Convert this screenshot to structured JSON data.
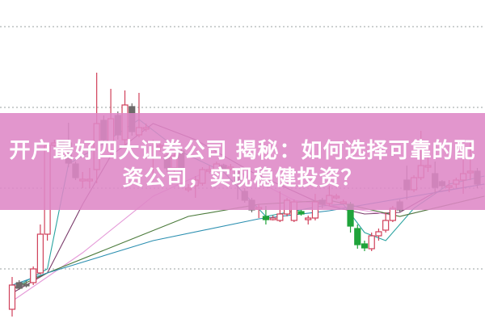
{
  "title": {
    "line1": "开户最好四大证券公司 揭秘：如何选择可靠的配",
    "line2": "资公司，实现稳健投资？"
  },
  "colors": {
    "banner": "#de87c6",
    "up": "#d0405a",
    "down": "#6e6a6a",
    "down_green": "#1fa33a",
    "grid": "#9aa0a0"
  },
  "chart_data": {
    "type": "candlestick",
    "title": "",
    "xlabel": "",
    "ylabel": "",
    "grid": "horizontal dotted",
    "gridlines": [
      1,
      2,
      3,
      4
    ],
    "candles": [
      {
        "o": 0.5,
        "h": 0.9,
        "l": 0.41,
        "c": 0.8
      },
      {
        "o": 0.83,
        "h": 0.86,
        "l": 0.74,
        "c": 0.76
      },
      {
        "o": 0.81,
        "h": 0.85,
        "l": 0.77,
        "c": 0.8
      },
      {
        "o": 0.83,
        "h": 1.03,
        "l": 0.8,
        "c": 1.0
      },
      {
        "o": 0.95,
        "h": 1.55,
        "l": 0.93,
        "c": 1.43
      },
      {
        "o": 1.43,
        "h": 2.56,
        "l": 1.35,
        "c": 2.53
      },
      {
        "o": 2.53,
        "h": 2.6,
        "l": 2.5,
        "c": 2.56
      },
      {
        "o": 2.57,
        "h": 2.6,
        "l": 2.5,
        "c": 2.53
      },
      {
        "o": 2.56,
        "h": 2.81,
        "l": 2.26,
        "c": 2.31
      },
      {
        "o": 2.3,
        "h": 2.33,
        "l": 2.1,
        "c": 2.13
      },
      {
        "o": 2.11,
        "h": 2.2,
        "l": 2.0,
        "c": 2.11
      },
      {
        "o": 2.11,
        "h": 2.25,
        "l": 2.0,
        "c": 2.11
      },
      {
        "o": 2.23,
        "h": 3.43,
        "l": 2.06,
        "c": 2.8
      },
      {
        "o": 2.84,
        "h": 2.9,
        "l": 2.55,
        "c": 2.6
      },
      {
        "o": 2.46,
        "h": 3.23,
        "l": 2.4,
        "c": 2.86
      },
      {
        "o": 2.9,
        "h": 2.95,
        "l": 2.6,
        "c": 2.66
      },
      {
        "o": 2.6,
        "h": 3.21,
        "l": 2.5,
        "c": 3.03
      },
      {
        "o": 3.01,
        "h": 3.05,
        "l": 2.65,
        "c": 2.7
      },
      {
        "o": 2.66,
        "h": 3.18,
        "l": 2.63,
        "c": 2.75
      },
      {
        "o": 2.75,
        "h": 2.8,
        "l": 2.7,
        "c": 2.75
      },
      {
        "o": 2.58,
        "h": 2.6,
        "l": 2.1,
        "c": 2.58
      },
      {
        "o": 2.53,
        "h": 2.58,
        "l": 2.45,
        "c": 2.53
      },
      {
        "o": 2.4,
        "h": 2.45,
        "l": 2.2,
        "c": 2.25
      },
      {
        "o": 2.25,
        "h": 2.45,
        "l": 2.2,
        "c": 2.4
      },
      {
        "o": 2.46,
        "h": 2.5,
        "l": 2.2,
        "c": 2.25
      },
      {
        "o": 2.0,
        "h": 2.05,
        "l": 1.95,
        "c": 2.0
      },
      {
        "o": 2.03,
        "h": 2.15,
        "l": 1.88,
        "c": 2.1
      },
      {
        "o": 2.06,
        "h": 2.26,
        "l": 2.03,
        "c": 2.23
      },
      {
        "o": 2.23,
        "h": 2.28,
        "l": 2.18,
        "c": 2.23
      },
      {
        "o": 2.23,
        "h": 2.33,
        "l": 2.2,
        "c": 2.3
      },
      {
        "o": 2.28,
        "h": 2.3,
        "l": 2.2,
        "c": 2.23
      },
      {
        "o": 2.26,
        "h": 2.3,
        "l": 2.22,
        "c": 2.26
      },
      {
        "o": 2.2,
        "h": 2.22,
        "l": 1.86,
        "c": 2.06
      },
      {
        "o": 1.96,
        "h": 2.0,
        "l": 1.82,
        "c": 1.85
      },
      {
        "o": 1.85,
        "h": 1.88,
        "l": 1.7,
        "c": 1.73
      },
      {
        "o": 1.76,
        "h": 1.8,
        "l": 1.63,
        "c": 1.76
      },
      {
        "o": 1.65,
        "h": 1.78,
        "l": 1.55,
        "c": 1.61,
        "g": true
      },
      {
        "o": 1.63,
        "h": 1.66,
        "l": 1.6,
        "c": 1.63
      },
      {
        "o": 1.6,
        "h": 1.96,
        "l": 1.58,
        "c": 1.68
      },
      {
        "o": 1.68,
        "h": 1.88,
        "l": 1.65,
        "c": 1.85
      },
      {
        "o": 1.6,
        "h": 1.86,
        "l": 1.58,
        "c": 1.83
      },
      {
        "o": 1.71,
        "h": 1.73,
        "l": 1.66,
        "c": 1.68,
        "g": true
      },
      {
        "o": 1.63,
        "h": 1.66,
        "l": 1.55,
        "c": 1.63
      },
      {
        "o": 1.63,
        "h": 1.93,
        "l": 1.6,
        "c": 1.83
      },
      {
        "o": 1.85,
        "h": 1.88,
        "l": 1.75,
        "c": 1.8
      },
      {
        "o": 1.81,
        "h": 2.03,
        "l": 1.78,
        "c": 1.91
      },
      {
        "o": 1.9,
        "h": 1.93,
        "l": 1.86,
        "c": 1.9
      },
      {
        "o": 1.83,
        "h": 1.86,
        "l": 1.8,
        "c": 1.83
      },
      {
        "o": 1.8,
        "h": 1.83,
        "l": 1.45,
        "c": 1.53,
        "g": true
      },
      {
        "o": 1.5,
        "h": 1.55,
        "l": 1.25,
        "c": 1.3,
        "g": true
      },
      {
        "o": 1.31,
        "h": 1.35,
        "l": 1.22,
        "c": 1.26,
        "g": true
      },
      {
        "o": 1.25,
        "h": 1.45,
        "l": 1.22,
        "c": 1.41
      },
      {
        "o": 1.41,
        "h": 1.5,
        "l": 1.35,
        "c": 1.46
      },
      {
        "o": 1.48,
        "h": 1.7,
        "l": 1.45,
        "c": 1.6
      },
      {
        "o": 1.6,
        "h": 1.78,
        "l": 1.58,
        "c": 1.75
      },
      {
        "o": 1.83,
        "h": 1.86,
        "l": 1.7,
        "c": 1.73
      },
      {
        "o": 2.1,
        "h": 2.28,
        "l": 1.86,
        "c": 1.98
      },
      {
        "o": 1.98,
        "h": 2.16,
        "l": 1.95,
        "c": 2.13
      },
      {
        "o": 2.13,
        "h": 2.71,
        "l": 2.1,
        "c": 2.28
      },
      {
        "o": 2.28,
        "h": 2.4,
        "l": 2.2,
        "c": 2.28
      },
      {
        "o": 2.18,
        "h": 2.33,
        "l": 1.93,
        "c": 2.01
      },
      {
        "o": 2.08,
        "h": 2.1,
        "l": 2.0,
        "c": 2.03
      },
      {
        "o": 2.03,
        "h": 2.1,
        "l": 1.95,
        "c": 2.03
      },
      {
        "o": 2.05,
        "h": 2.13,
        "l": 2.0,
        "c": 2.1
      },
      {
        "o": 2.1,
        "h": 2.53,
        "l": 1.93,
        "c": 2.18
      },
      {
        "o": 2.19,
        "h": 2.6,
        "l": 2.1,
        "c": 2.21
      },
      {
        "o": 2.21,
        "h": 2.25,
        "l": 2.0,
        "c": 2.05
      }
    ],
    "moving_averages": [
      {
        "color": "#2aa3a0",
        "points": [
          [
            0,
            0.75
          ],
          [
            5,
            1.0
          ],
          [
            8,
            2.3
          ],
          [
            12,
            2.5
          ],
          [
            18,
            2.85
          ],
          [
            24,
            2.45
          ],
          [
            30,
            2.2
          ],
          [
            36,
            1.65
          ],
          [
            44,
            1.78
          ],
          [
            47,
            1.8
          ],
          [
            50,
            1.45
          ],
          [
            53,
            1.35
          ],
          [
            57,
            1.75
          ],
          [
            62,
            2.05
          ],
          [
            67,
            2.15
          ]
        ]
      },
      {
        "color": "#7a3a6a",
        "points": [
          [
            0,
            0.7
          ],
          [
            5,
            0.95
          ],
          [
            10,
            1.8
          ],
          [
            14,
            2.4
          ],
          [
            20,
            2.8
          ],
          [
            26,
            2.6
          ],
          [
            34,
            2.2
          ],
          [
            44,
            1.8
          ],
          [
            50,
            1.68
          ],
          [
            55,
            1.7
          ],
          [
            60,
            1.95
          ],
          [
            67,
            2.05
          ]
        ]
      },
      {
        "color": "#e59ad8",
        "points": [
          [
            0,
            0.6
          ],
          [
            5,
            0.9
          ],
          [
            10,
            1.2
          ],
          [
            20,
            1.9
          ],
          [
            30,
            2.3
          ],
          [
            40,
            1.85
          ],
          [
            48,
            1.75
          ],
          [
            55,
            1.65
          ],
          [
            67,
            1.9
          ]
        ]
      },
      {
        "color": "#4a7a3a",
        "points": [
          [
            0,
            0.75
          ],
          [
            5,
            0.95
          ],
          [
            15,
            1.3
          ],
          [
            25,
            1.65
          ],
          [
            35,
            1.8
          ],
          [
            45,
            1.85
          ],
          [
            55,
            1.65
          ],
          [
            67,
            1.9
          ]
        ]
      },
      {
        "color": "#2b8fb0",
        "points": [
          [
            0,
            0.8
          ],
          [
            5,
            0.95
          ],
          [
            20,
            1.35
          ],
          [
            35,
            1.62
          ],
          [
            45,
            1.72
          ],
          [
            67,
            2.05
          ]
        ]
      }
    ]
  }
}
